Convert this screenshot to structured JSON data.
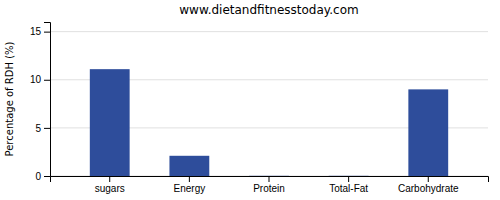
{
  "chart_data": {
    "type": "bar",
    "subtitle": "www.dietandfitnesstoday.com",
    "ylabel": "Percentage of RDH (%)",
    "categories": [
      "sugars",
      "Energy",
      "Protein",
      "Total-Fat",
      "Carbohydrate"
    ],
    "values": [
      11.1,
      2.1,
      0.02,
      0.02,
      9.0
    ],
    "color": "#2e4d9b",
    "ylim": [
      0,
      16
    ],
    "yticks": [
      0,
      5,
      10,
      15
    ],
    "grid": true
  }
}
